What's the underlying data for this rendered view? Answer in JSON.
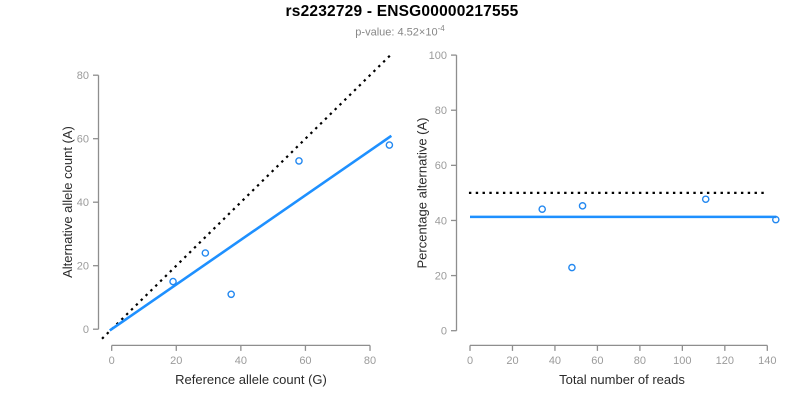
{
  "header": {
    "title": "rs2232729 - ENSG00000217555",
    "subtitle_prefix": "p-value: 4.52×10",
    "subtitle_exponent": "-4"
  },
  "colors": {
    "fit_line_blue": "#1E90FF",
    "point_blue": "#2388F0",
    "reference_line_black": "#000000",
    "axis_gray": "#8E8E8E",
    "tick_label_gray": "#9B9B9B",
    "axis_title_color": "#2B2B2B"
  },
  "chart_data": [
    {
      "id": "allele-counts",
      "type": "scatter",
      "xlabel": "Reference allele count (G)",
      "ylabel": "Alternative allele count (A)",
      "xticks": [
        0,
        20,
        40,
        60,
        80
      ],
      "yticks": [
        0,
        20,
        40,
        60,
        80
      ],
      "xlim": [
        -3.5,
        89
      ],
      "ylim": [
        -3.5,
        87
      ],
      "grid": false,
      "points": [
        [
          19,
          15
        ],
        [
          29,
          24
        ],
        [
          37,
          11
        ],
        [
          58,
          53
        ],
        [
          86,
          58
        ]
      ],
      "lines": [
        {
          "name": "identity-line",
          "dash": true,
          "color": "#000000",
          "x1": -3,
          "y1": -3,
          "x2": 86.5,
          "y2": 86.5
        },
        {
          "name": "fit-line",
          "dash": false,
          "color": "#1E90FF",
          "x1": -0.6,
          "y1": -0.4,
          "x2": 86.6,
          "y2": 60.9
        }
      ]
    },
    {
      "id": "percentage-alternative",
      "type": "scatter",
      "xlabel": "Total number of reads",
      "ylabel": "Percentage alternative (A)",
      "xticks": [
        0,
        20,
        40,
        60,
        80,
        100,
        120,
        140
      ],
      "yticks": [
        0,
        20,
        40,
        60,
        80,
        100
      ],
      "xlim": [
        -6,
        150
      ],
      "ylim": [
        -4,
        104
      ],
      "grid": false,
      "points": [
        [
          34,
          44.1
        ],
        [
          53,
          45.3
        ],
        [
          48,
          22.9
        ],
        [
          111,
          47.7
        ],
        [
          144,
          40.3
        ]
      ],
      "lines": [
        {
          "name": "expected-50pct-line",
          "dash": true,
          "color": "#000000",
          "x1": -0.5,
          "y1": 50,
          "x2": 140.3,
          "y2": 50
        },
        {
          "name": "mean-alt-line",
          "dash": false,
          "color": "#1E90FF",
          "x1": 0,
          "y1": 41.3,
          "x2": 144.3,
          "y2": 41.3
        }
      ]
    }
  ]
}
